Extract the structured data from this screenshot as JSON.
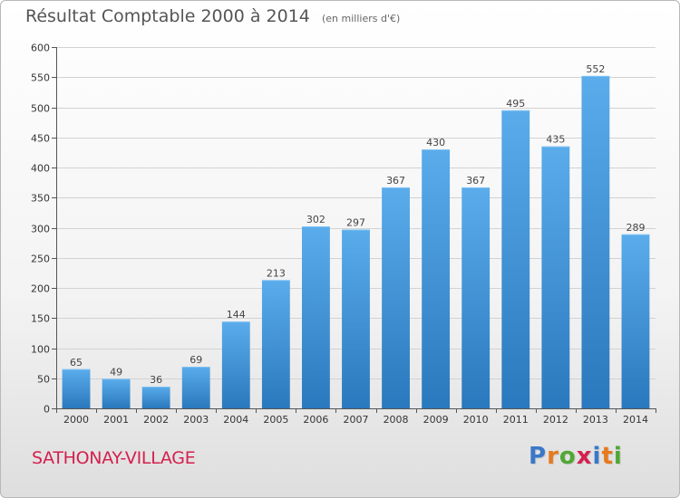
{
  "chart_data": {
    "type": "bar",
    "title": "Résultat Comptable 2000 à 2014",
    "subtitle": "(en milliers d'€)",
    "categories": [
      "2000",
      "2001",
      "2002",
      "2003",
      "2004",
      "2005",
      "2006",
      "2007",
      "2008",
      "2009",
      "2010",
      "2011",
      "2012",
      "2013",
      "2014"
    ],
    "values": [
      65,
      49,
      36,
      69,
      144,
      213,
      302,
      297,
      367,
      430,
      367,
      495,
      435,
      552,
      289
    ],
    "ylim": [
      0,
      600
    ],
    "yticks": [
      0,
      50,
      100,
      150,
      200,
      250,
      300,
      350,
      400,
      450,
      500,
      550,
      600
    ],
    "xlabel": "",
    "ylabel": "",
    "grid": true,
    "bar_color": "#4a9fe0"
  },
  "footer": {
    "commune": "SATHONAY-VILLAGE",
    "brand": {
      "letters": [
        {
          "char": "P",
          "color": "#3a78c8"
        },
        {
          "char": "r",
          "color": "#e67a1c"
        },
        {
          "char": "o",
          "color": "#4fa833"
        },
        {
          "char": "x",
          "color": "#d4204e"
        },
        {
          "char": "i",
          "color": "#3a78c8"
        },
        {
          "char": "t",
          "color": "#e67a1c"
        },
        {
          "char": "i",
          "color": "#4fa833"
        }
      ]
    }
  }
}
